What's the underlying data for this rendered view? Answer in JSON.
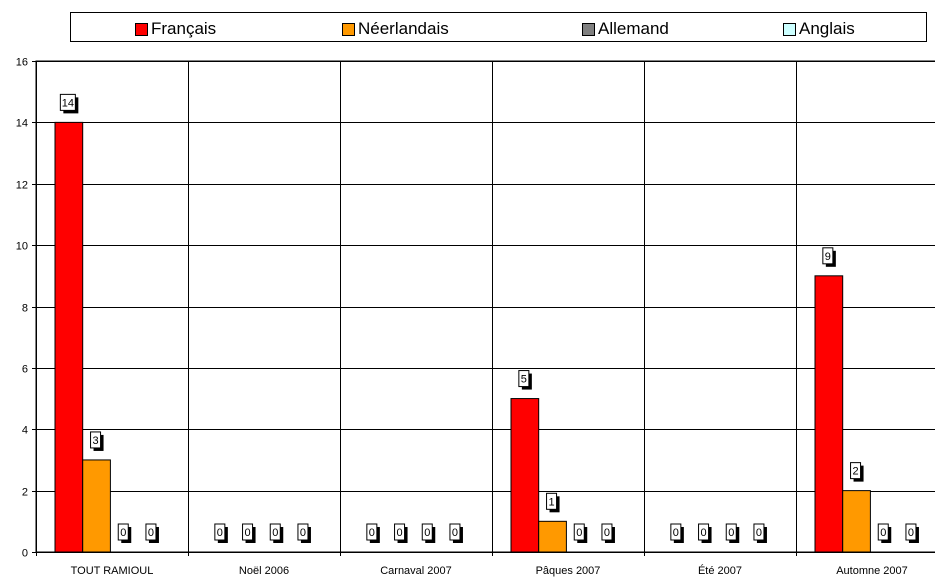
{
  "chart_data": {
    "type": "bar",
    "categories": [
      "TOUT RAMIOUL",
      "Noël 2006",
      "Carnaval 2007",
      "Pâques 2007",
      "Été 2007",
      "Automne 2007"
    ],
    "series": [
      {
        "name": "Français",
        "color": "#ff0000",
        "values": [
          14,
          0,
          0,
          5,
          0,
          9
        ]
      },
      {
        "name": "Néerlandais",
        "color": "#ff9900",
        "values": [
          3,
          0,
          0,
          1,
          0,
          2
        ]
      },
      {
        "name": "Allemand",
        "color": "#808080",
        "values": [
          0,
          0,
          0,
          0,
          0,
          0
        ]
      },
      {
        "name": "Anglais",
        "color": "#ccffff",
        "values": [
          0,
          0,
          0,
          0,
          0,
          0
        ]
      }
    ],
    "title": "",
    "xlabel": "",
    "ylabel": "",
    "ylim": [
      0,
      16
    ],
    "yticks": [
      0,
      2,
      4,
      6,
      8,
      10,
      12,
      14,
      16
    ],
    "grid": true,
    "legend_position": "top"
  }
}
